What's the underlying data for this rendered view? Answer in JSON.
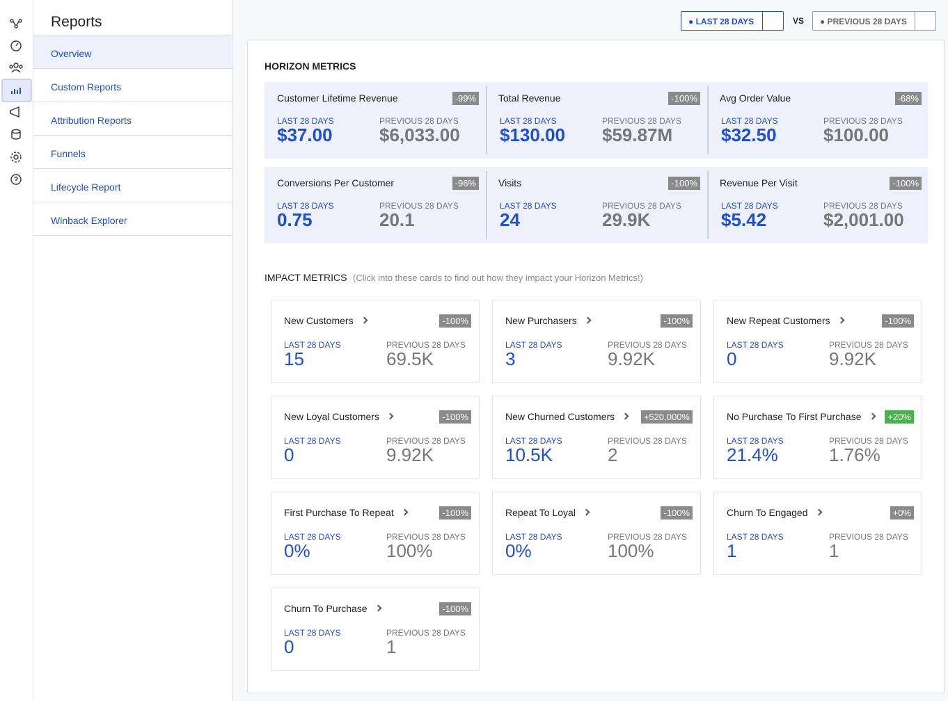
{
  "sidebar": {
    "title": "Reports",
    "items": [
      "Overview",
      "Custom Reports",
      "Attribution Reports",
      "Funnels",
      "Lifecycle Report",
      "Winback Explorer"
    ]
  },
  "period_labels": {
    "current": "LAST 28 DAYS",
    "vs": "VS",
    "previous": "PREVIOUS 28 DAYS"
  },
  "horizon": {
    "title": "HORIZON METRICS",
    "cards": [
      {
        "name": "Customer Lifetime Revenue",
        "change": "-99%",
        "current": "$37.00",
        "previous": "$6,033.00"
      },
      {
        "name": "Total Revenue",
        "change": "-100%",
        "current": "$130.00",
        "previous": "$59.87M"
      },
      {
        "name": "Avg Order Value",
        "change": "-68%",
        "current": "$32.50",
        "previous": "$100.00"
      },
      {
        "name": "Conversions Per Customer",
        "change": "-96%",
        "current": "0.75",
        "previous": "20.1"
      },
      {
        "name": "Visits",
        "change": "-100%",
        "current": "24",
        "previous": "29.9K"
      },
      {
        "name": "Revenue Per Visit",
        "change": "-100%",
        "current": "$5.42",
        "previous": "$2,001.00"
      }
    ]
  },
  "impact": {
    "title": "IMPACT METRICS",
    "note": "(Click into these cards to find out how they impact your Horizon Metrics!)",
    "cards": [
      {
        "name": "New Customers",
        "change": "-100%",
        "badge_color": "#8a8a8a",
        "current": "15",
        "previous": "69.5K"
      },
      {
        "name": "New Purchasers",
        "change": "-100%",
        "badge_color": "#8a8a8a",
        "current": "3",
        "previous": "9.92K"
      },
      {
        "name": "New Repeat Customers",
        "change": "-100%",
        "badge_color": "#8a8a8a",
        "current": "0",
        "previous": "9.92K"
      },
      {
        "name": "New Loyal Customers",
        "change": "-100%",
        "badge_color": "#8a8a8a",
        "current": "0",
        "previous": "9.92K"
      },
      {
        "name": "New Churned Customers",
        "change": "+520,000%",
        "badge_color": "#8a8a8a",
        "current": "10.5K",
        "previous": "2"
      },
      {
        "name": "No Purchase To First Purchase",
        "change": "+20%",
        "badge_color": "#4caf50",
        "current": "21.4%",
        "previous": "1.76%"
      },
      {
        "name": "First Purchase To Repeat",
        "change": "-100%",
        "badge_color": "#8a8a8a",
        "current": "0%",
        "previous": "100%"
      },
      {
        "name": "Repeat To Loyal",
        "change": "-100%",
        "badge_color": "#8a8a8a",
        "current": "0%",
        "previous": "100%"
      },
      {
        "name": "Churn To Engaged",
        "change": "+0%",
        "badge_color": "#8a8a8a",
        "current": "1",
        "previous": "1"
      },
      {
        "name": "Churn To Purchase",
        "change": "-100%",
        "badge_color": "#8a8a8a",
        "current": "0",
        "previous": "1"
      }
    ]
  }
}
